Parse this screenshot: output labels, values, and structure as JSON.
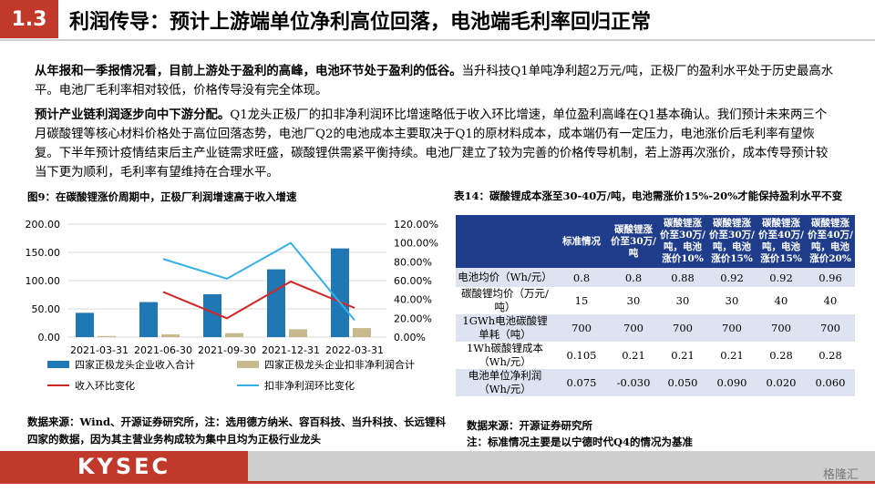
{
  "header": {
    "section_no": "1.3",
    "title": "利润传导：预计上游端单位净利高位回落，电池端毛利率回归正常"
  },
  "paragraphs": [
    {
      "bold": "从年报和一季报情况看，目前上游处于盈利的高峰，电池环节处于盈利的低谷。",
      "text": "当升科技Q1单吨净利超2万元/吨，正极厂的盈利水平处于历史最高水平。电池厂毛利率相对较低，价格传导没有完全体现。"
    },
    {
      "bold": "预计产业链利润逐步向中下游分配。",
      "text": "Q1龙头正极厂的扣非净利润环比增速略低于收入环比增速，单位盈利高峰在Q1基本确认。我们预计未来两三个月碳酸锂等核心材料价格处于高位回落态势，电池厂Q2的电池成本主要取决于Q1的原材料成本，成本端仍有一定压力，电池涨价后毛利率有望恢复。下半年预计疫情结束后主产业链需求旺盛，碳酸锂供需紧平衡持续。电池厂建立了较为完善的价格传导机制，若上游再次涨价，成本传导预计较当下更为顺利，毛利率有望维持在合理水平。"
    }
  ],
  "figure": {
    "title": "图9：在碳酸锂涨价周期中，正极厂利润增速高于收入增速",
    "source": "数据来源：Wind、开源证券研究所，注：选用德方纳米、容百科技、当升科技、长远锂科四家的数据，因为其主营业务构成较为集中且均为正极行业龙头"
  },
  "chart_data": {
    "type": "bar",
    "categories": [
      "2021-03-31",
      "2021-06-30",
      "2021-09-30",
      "2021-12-31",
      "2022-03-31"
    ],
    "y_left": {
      "ticks": [
        "0.00",
        "50.00",
        "100.00",
        "150.00",
        "200.00"
      ],
      "lim": [
        0,
        200
      ]
    },
    "y_right": {
      "ticks": [
        "0.00%",
        "20.00%",
        "40.00%",
        "60.00%",
        "80.00%",
        "100.00%",
        "120.00%"
      ],
      "lim": [
        0,
        120
      ]
    },
    "series": [
      {
        "name": "四家正极龙头企业收入合计",
        "type": "bar",
        "axis": "left",
        "color": "#1f77b4",
        "values": [
          43,
          62,
          76,
          120,
          157
        ]
      },
      {
        "name": "四家正极龙头企业扣非净利润合计",
        "type": "bar",
        "axis": "left",
        "color": "#c9b98f",
        "values": [
          2,
          5,
          7,
          14,
          16
        ]
      },
      {
        "name": "收入环比变化",
        "type": "line",
        "axis": "right",
        "color": "#d62728",
        "values": [
          null,
          48,
          20,
          59,
          31
        ]
      },
      {
        "name": "扣非净利润环比变化",
        "type": "line",
        "axis": "right",
        "color": "#33b1e8",
        "values": [
          null,
          83,
          62,
          100,
          18
        ]
      }
    ]
  },
  "table": {
    "title": "表14：碳酸锂成本涨至30-40万/吨，电池需涨价15%-20%才能保持盈利水平不变",
    "headers": [
      "",
      "标准情况",
      "碳酸锂涨价至30万/吨",
      "碳酸锂涨价至30万/吨，电池涨价10%",
      "碳酸锂涨价至30万/吨，电池涨价15%",
      "碳酸锂涨价至40万/吨，电池涨价15%",
      "碳酸锂涨价至40万/吨，电池涨价20%"
    ],
    "rows": [
      [
        "电池均价（Wh/元）",
        "0.8",
        "0.8",
        "0.88",
        "0.92",
        "0.92",
        "0.96"
      ],
      [
        "碳酸锂均价（万元/吨）",
        "15",
        "30",
        "30",
        "30",
        "40",
        "40"
      ],
      [
        "1GWh电池碳酸锂单耗（吨）",
        "700",
        "700",
        "700",
        "700",
        "700",
        "700"
      ],
      [
        "1Wh碳酸锂成本（Wh/元）",
        "0.105",
        "0.21",
        "0.21",
        "0.21",
        "0.28",
        "0.28"
      ],
      [
        "电池单位净利润（Wh/元）",
        "0.075",
        "-0.030",
        "0.050",
        "0.090",
        "0.020",
        "0.060"
      ]
    ],
    "source_1": "数据来源：开源证券研究所",
    "source_2": "注：标准情况主要是以宁德时代Q4的情况为基准"
  },
  "footer": {
    "logo": "KYSEC",
    "watermark": "格隆汇"
  }
}
